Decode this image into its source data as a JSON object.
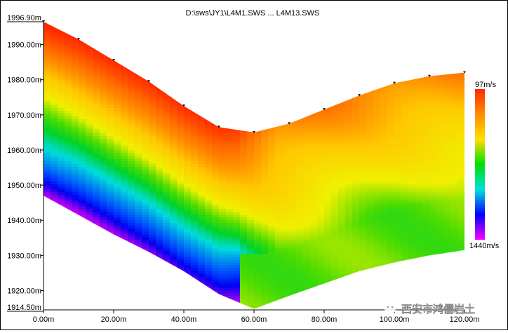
{
  "window": {
    "title": "D:\\sws\\JY1\\L4M1.SWS ... L4M13.SWS"
  },
  "watermark": {
    "text": "西安市鸿儒岩土"
  },
  "colors": {
    "background": "#ffffff",
    "axis": "#000000",
    "watermark_text": "#ffffff"
  },
  "chart_data": {
    "type": "heatmap",
    "title": "D:\\sws\\JY1\\L4M1.SWS ... L4M13.SWS",
    "xlabel": "",
    "ylabel": "",
    "xlim": [
      0,
      120
    ],
    "ylim": [
      1914.5,
      1996.9
    ],
    "x_ticks": [
      0,
      20,
      40,
      60,
      80,
      100,
      120
    ],
    "x_tick_labels": [
      "0.00m",
      "20.00m",
      "40.00m",
      "60.00m",
      "80.00m",
      "100.00m",
      "120.00m"
    ],
    "y_ticks": [
      1920,
      1930,
      1940,
      1950,
      1960,
      1970,
      1980,
      1990
    ],
    "y_tick_labels": [
      "1920.00m",
      "1930.00m",
      "1940.00m",
      "1950.00m",
      "1960.00m",
      "1970.00m",
      "1980.00m",
      "1990.00m"
    ],
    "y_extent_labels": [
      "1996.90m",
      "1914.50m"
    ],
    "surface_stations": {
      "x": [
        0,
        10,
        20,
        30,
        40,
        50,
        60,
        70,
        80,
        90,
        100,
        110,
        120
      ],
      "elevation": [
        1996.5,
        1991.5,
        1985.5,
        1979.5,
        1972.5,
        1966.5,
        1965,
        1967.5,
        1971.5,
        1975.5,
        1979,
        1981,
        1982
      ]
    },
    "bottom_boundary": {
      "x": [
        0,
        10,
        20,
        30,
        40,
        50,
        60,
        70,
        80,
        90,
        100,
        110,
        120
      ],
      "elevation": [
        1947,
        1941.5,
        1936,
        1931,
        1925.5,
        1919,
        1914.8,
        1918.5,
        1922,
        1925.5,
        1928,
        1930,
        1931.5
      ]
    },
    "colorbar": {
      "max_label": "97m/s",
      "min_label": "1440m/s",
      "colors_top_to_bottom": [
        "#ff2a00",
        "#ff8c00",
        "#ffe000",
        "#00e000",
        "#00e0e0",
        "#0000ff",
        "#ff00ff"
      ]
    }
  }
}
